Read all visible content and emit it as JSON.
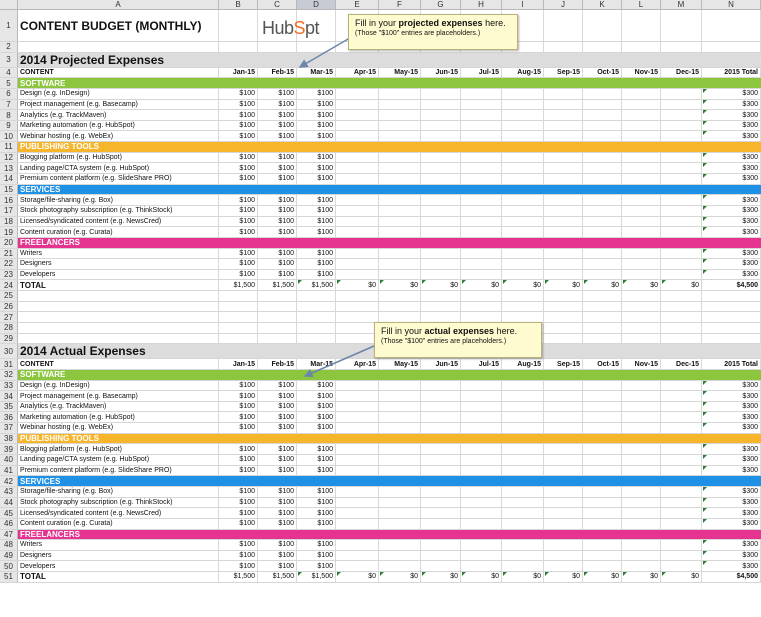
{
  "columns": [
    "A",
    "B",
    "C",
    "D",
    "E",
    "F",
    "G",
    "H",
    "I",
    "J",
    "K",
    "L",
    "M",
    "N"
  ],
  "selected_column": "D",
  "logo": {
    "pre": "Hub",
    "o": "S",
    "post": "pt"
  },
  "title": "CONTENT BUDGET (MONTHLY)",
  "months": [
    "Jan-15",
    "Feb-15",
    "Mar-15",
    "Apr-15",
    "May-15",
    "Jun-15",
    "Jul-15",
    "Aug-15",
    "Sep-15",
    "Oct-15",
    "Nov-15",
    "Dec-15"
  ],
  "year_total_label": "2015 Total",
  "content_label": "CONTENT",
  "callouts": [
    {
      "pre": "Fill in your ",
      "bold": "projected expenses",
      "post": " here.",
      "note": "(Those \"$100\" entries are placeholders.)"
    },
    {
      "pre": "Fill in your ",
      "bold": "actual expenses",
      "post": " here.",
      "note": "(Those \"$100\" entries are placeholders.)"
    }
  ],
  "colors": {
    "software": "#8cc63f",
    "publishing": "#f7b52b",
    "services": "#1e90e6",
    "freelancers": "#e5348f",
    "heading": "#dcdcdc"
  },
  "blocks": [
    {
      "heading": "2014 Projected Expenses",
      "start_row": 3,
      "sections": [
        {
          "name": "SOFTWARE",
          "color": "green",
          "items": [
            "Design (e.g. InDesign)",
            "Project management (e.g. Basecamp)",
            "Analytics (e.g. TrackMaven)",
            "Marketing automation (e.g. HubSpot)",
            "Webinar hosting (e.g. WebEx)"
          ]
        },
        {
          "name": "PUBLISHING TOOLS",
          "color": "orange",
          "items": [
            "Blogging platform (e.g. HubSpot)",
            "Landing page/CTA system (e.g. HubSpot)",
            "Premium content platform (e.g. SlideShare PRO)"
          ]
        },
        {
          "name": "SERVICES",
          "color": "blue",
          "items": [
            "Storage/file-sharing (e.g. Box)",
            "Stock photography subscription (e.g. ThinkStock)",
            "Licensed/syndicated content (e.g. NewsCred)",
            "Content curation (e.g. Curata)"
          ]
        },
        {
          "name": "FREELANCERS",
          "color": "pink",
          "items": [
            "Writers",
            "Designers",
            "Developers"
          ]
        }
      ],
      "total_label": "TOTAL"
    },
    {
      "heading": "2014 Actual Expenses",
      "start_row": 30,
      "sections": [
        {
          "name": "SOFTWARE",
          "color": "green",
          "items": [
            "Design (e.g. InDesign)",
            "Project management (e.g. Basecamp)",
            "Analytics (e.g. TrackMaven)",
            "Marketing automation (e.g. HubSpot)",
            "Webinar hosting (e.g. WebEx)"
          ]
        },
        {
          "name": "PUBLISHING TOOLS",
          "color": "orange",
          "items": [
            "Blogging platform (e.g. HubSpot)",
            "Landing page/CTA system (e.g. HubSpot)",
            "Premium content platform (e.g. SlideShare PRO)"
          ]
        },
        {
          "name": "SERVICES",
          "color": "blue",
          "items": [
            "Storage/file-sharing (e.g. Box)",
            "Stock photography subscription (e.g. ThinkStock)",
            "Licensed/syndicated content (e.g. NewsCred)",
            "Content curation (e.g. Curata)"
          ]
        },
        {
          "name": "FREELANCERS",
          "color": "pink",
          "items": [
            "Writers",
            "Designers",
            "Developers"
          ]
        }
      ],
      "total_label": "TOTAL"
    }
  ],
  "item_values": [
    "$100",
    "$100",
    "$100",
    "",
    "",
    "",
    "",
    "",
    "",
    "",
    "",
    ""
  ],
  "item_total": "$300",
  "total_values": [
    "$1,500",
    "$1,500",
    "$1,500",
    "$0",
    "$0",
    "$0",
    "$0",
    "$0",
    "$0",
    "$0",
    "$0",
    "$0"
  ],
  "grand_total": "$4,500"
}
